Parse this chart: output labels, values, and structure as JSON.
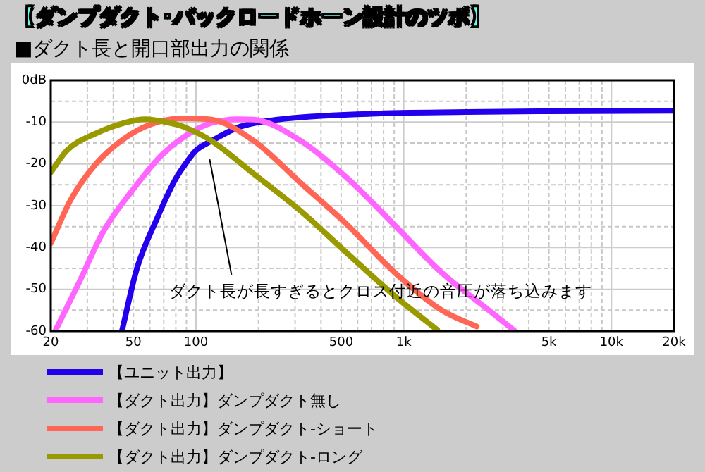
{
  "chart_data": {
    "type": "line",
    "title": "【ダンプダクト･バックロードホーン設計のツボ】",
    "subtitle": "■ダクト長と開口部出力の関係",
    "log": "x",
    "grid": true,
    "legend": "bottom",
    "xlim": [
      20,
      20000
    ],
    "ylim": [
      -60,
      0
    ],
    "xticks": [
      20,
      {
        "value": 30,
        "label": null
      },
      {
        "value": 40,
        "label": null
      },
      50,
      {
        "value": 60,
        "label": null
      },
      {
        "value": 70,
        "label": null
      },
      {
        "value": 80,
        "label": null
      },
      {
        "value": 90,
        "label": null
      },
      100,
      {
        "value": 200,
        "label": null
      },
      {
        "value": 300,
        "label": null
      },
      {
        "value": 400,
        "label": null
      },
      500,
      {
        "value": 600,
        "label": null
      },
      {
        "value": 700,
        "label": null
      },
      {
        "value": 800,
        "label": null
      },
      {
        "value": 900,
        "label": null
      },
      {
        "value": 1000,
        "label": "1k"
      },
      {
        "value": 2000,
        "label": null
      },
      {
        "value": 3000,
        "label": null
      },
      {
        "value": 4000,
        "label": null
      },
      {
        "value": 5000,
        "label": "5k"
      },
      {
        "value": 6000,
        "label": null
      },
      {
        "value": 7000,
        "label": null
      },
      {
        "value": 8000,
        "label": null
      },
      {
        "value": 9000,
        "label": null
      },
      {
        "value": 10000,
        "label": "10k"
      },
      {
        "value": 20000,
        "label": "20k"
      }
    ],
    "yticks": [
      {
        "value": -60,
        "label": "-60"
      },
      {
        "value": -55,
        "label": null
      },
      {
        "value": -50,
        "label": "-50"
      },
      {
        "value": -45,
        "label": null
      },
      {
        "value": -40,
        "label": "-40"
      },
      {
        "value": -35,
        "label": null
      },
      {
        "value": -30,
        "label": "-30"
      },
      {
        "value": -25,
        "label": null
      },
      {
        "value": -20,
        "label": "-20"
      },
      {
        "value": -15,
        "label": null
      },
      {
        "value": -10,
        "label": "-10"
      },
      {
        "value": -5,
        "label": null
      },
      {
        "value": 0,
        "label": "0dB"
      }
    ],
    "series": [
      {
        "name": "【ユニット出力】",
        "color": "#2200ee",
        "x": [
          44,
          52,
          65,
          79,
          87,
          100,
          119,
          163,
          247,
          697,
          2000,
          5060,
          20000
        ],
        "values": [
          -60,
          -45,
          -33,
          -24,
          -20.7,
          -16.8,
          -14.5,
          -11.1,
          -9.4,
          -8,
          -7.6,
          -7.4,
          -7.3
        ]
      },
      {
        "name": "【ダクト出力】ダンプダクト無し",
        "color": "#ff66ff",
        "x": [
          21,
          27,
          36,
          50,
          68,
          93,
          119,
          160,
          190,
          320,
          538,
          906,
          1524,
          2570,
          3430
        ],
        "values": [
          -60,
          -49,
          -36,
          -26,
          -18,
          -12.7,
          -10.2,
          -9.3,
          -9.4,
          -14.5,
          -23.5,
          -34.7,
          -46,
          -55,
          -60
        ]
      },
      {
        "name": "【ダクト出力】ダンプダクト-ショート",
        "color": "#ff6655",
        "x": [
          20,
          25,
          33,
          45,
          61,
          87,
          119,
          190,
          320,
          538,
          906,
          1524,
          2245
        ],
        "values": [
          -39,
          -28.5,
          -20,
          -14,
          -10.5,
          -9.1,
          -9.4,
          -14.5,
          -24.6,
          -34.7,
          -46,
          -55,
          -58.9
        ]
      },
      {
        "name": "【ダクト出力】ダンプダクト-ロング",
        "color": "#999900",
        "x": [
          20,
          24,
          33,
          45,
          57,
          75,
          87,
          119,
          190,
          320,
          538,
          906,
          1450
        ],
        "values": [
          -22,
          -16.7,
          -12.7,
          -10.2,
          -9.3,
          -10.2,
          -11.1,
          -14.5,
          -22.4,
          -31.3,
          -41.5,
          -51.6,
          -59.7
        ]
      }
    ],
    "annotations": [
      "ダクト長が長すぎるとクロス付近の音圧が落ち込みます"
    ]
  }
}
